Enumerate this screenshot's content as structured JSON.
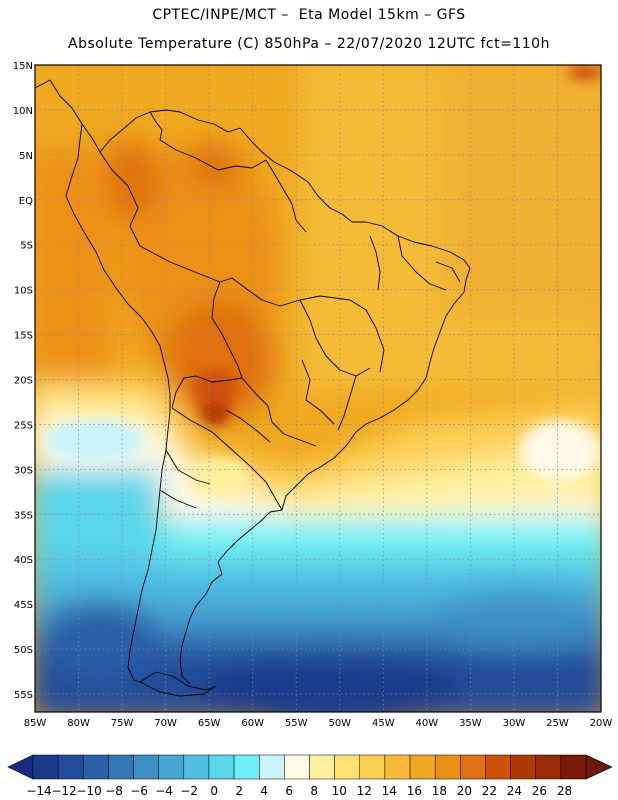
{
  "header": {
    "line1": "CPTEC/INPE/MCT –  Eta Model 15km – GFS",
    "line2": "Absolute Temperature (C) 850hPa – 22/07/2020 12UTC fct=110h"
  },
  "map": {
    "lat_labels": [
      "15N",
      "10N",
      "5N",
      "EQ",
      "5S",
      "10S",
      "15S",
      "20S",
      "25S",
      "30S",
      "35S",
      "40S",
      "45S",
      "50S",
      "55S"
    ],
    "lon_labels": [
      "85W",
      "80W",
      "75W",
      "70W",
      "65W",
      "60W",
      "55W",
      "50W",
      "45W",
      "40W",
      "35W",
      "30W",
      "25W",
      "20W"
    ],
    "lat_range": [
      15,
      -57
    ],
    "lon_range": [
      -85,
      -20
    ],
    "grid": "dotted"
  },
  "colorbar": {
    "labels": [
      "-14",
      "-12",
      "-10",
      "-8",
      "-6",
      "-4",
      "-2",
      "0",
      "2",
      "4",
      "6",
      "8",
      "10",
      "12",
      "14",
      "16",
      "18",
      "20",
      "22",
      "24",
      "26",
      "28"
    ],
    "colors": [
      "#1a3a8c",
      "#224c9a",
      "#2b5fa8",
      "#3476b8",
      "#3d8fc8",
      "#46a6d6",
      "#4fc0e2",
      "#5ad6ec",
      "#6ff0f8",
      "#c8f4fa",
      "#fff8e6",
      "#fff0a0",
      "#ffe070",
      "#fcd055",
      "#f6bc38",
      "#f0a820",
      "#ec9015",
      "#e07010",
      "#d05008",
      "#b03806",
      "#982a05",
      "#7a1a04"
    ],
    "under_color": "#1a2c80",
    "over_color": "#6a1a0a"
  }
}
